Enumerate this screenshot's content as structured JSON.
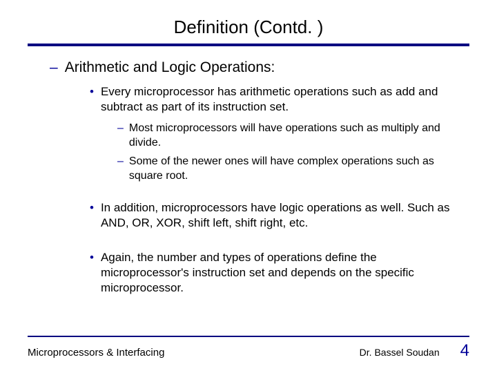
{
  "title": "Definition (Contd. )",
  "heading": "Arithmetic and Logic Operations:",
  "bullet1": "Every microprocessor has arithmetic operations such as add and subtract as part of its instruction set.",
  "sub1": "Most microprocessors will have operations such as multiply and divide.",
  "sub2": "Some of the newer ones will have complex operations such as square root.",
  "bullet2": "In addition, microprocessors have logic operations as well. Such as AND, OR, XOR, shift left, shift right, etc.",
  "bullet3": "Again, the number and types of operations define the microprocessor's instruction set and depends on the specific microprocessor.",
  "footer": {
    "course": "Microprocessors & Interfacing",
    "author": "Dr. Bassel Soudan",
    "page": "4"
  },
  "colors": {
    "accent": "#000080",
    "bullet_marker": "#000099",
    "text": "#000000",
    "page_number": "#000099",
    "background": "#ffffff"
  }
}
